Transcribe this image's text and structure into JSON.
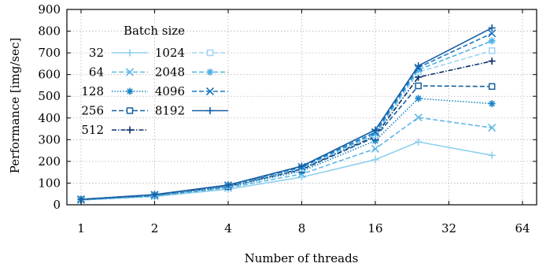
{
  "chart_data": {
    "type": "line",
    "xlabel": "Number of threads",
    "ylabel": "Performance [img/sec]",
    "x_scale": "log2",
    "x_ticks": [
      1,
      2,
      4,
      8,
      16,
      32,
      64
    ],
    "x_tick_labels": [
      "1",
      "2",
      "4",
      "8",
      "16",
      "32",
      "64"
    ],
    "xlim": [
      1,
      64
    ],
    "ylim": [
      0,
      900
    ],
    "y_ticks": [
      0,
      100,
      200,
      300,
      400,
      500,
      600,
      700,
      800,
      900
    ],
    "y_tick_labels": [
      "0",
      "100",
      "200",
      "300",
      "400",
      "500",
      "600",
      "700",
      "800",
      "900"
    ],
    "grid": true,
    "legend_title": "Batch size",
    "legend_position": "top-left",
    "x": [
      1,
      2,
      4,
      8,
      16,
      24,
      48
    ],
    "series": [
      {
        "name": "32",
        "color": "#8fd0ef",
        "dash": "solid",
        "marker": "plus",
        "values": [
          22,
          38,
          72,
          127,
          208,
          290,
          228
        ]
      },
      {
        "name": "64",
        "color": "#5eb8e6",
        "dash": "dashed",
        "marker": "x",
        "values": [
          22,
          40,
          78,
          142,
          258,
          402,
          355
        ]
      },
      {
        "name": "128",
        "color": "#1b86c7",
        "dash": "dotted",
        "marker": "asterisk",
        "values": [
          23,
          42,
          82,
          155,
          295,
          490,
          466
        ]
      },
      {
        "name": "256",
        "color": "#16609f",
        "dash": "dashed",
        "marker": "square",
        "values": [
          24,
          44,
          85,
          162,
          312,
          548,
          545
        ]
      },
      {
        "name": "512",
        "color": "#0b2f6a",
        "dash": "dashdot",
        "marker": "plus",
        "values": [
          24,
          45,
          87,
          165,
          318,
          588,
          662
        ]
      },
      {
        "name": "1024",
        "color": "#9fd4f0",
        "dash": "dashed",
        "marker": "square",
        "values": [
          24,
          45,
          88,
          168,
          322,
          612,
          710
        ]
      },
      {
        "name": "2048",
        "color": "#4eb0e4",
        "dash": "dashed",
        "marker": "asterisk",
        "values": [
          25,
          46,
          89,
          172,
          328,
          622,
          755
        ]
      },
      {
        "name": "4096",
        "color": "#1a78c0",
        "dash": "dashed",
        "marker": "x",
        "values": [
          25,
          46,
          90,
          175,
          335,
          632,
          790
        ]
      },
      {
        "name": "8192",
        "color": "#165fa3",
        "dash": "solid",
        "marker": "plus",
        "values": [
          25,
          47,
          91,
          178,
          345,
          640,
          815
        ]
      }
    ]
  }
}
